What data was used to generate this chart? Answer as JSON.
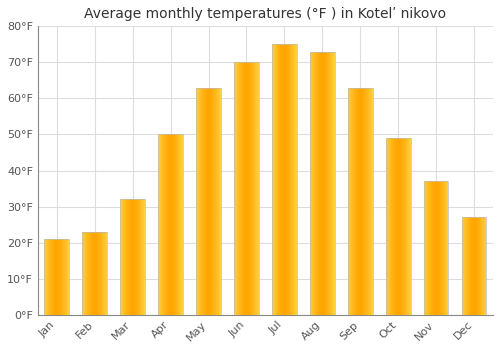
{
  "title": "Average monthly temperatures (°F ) in Kotelʹ nikovo",
  "months": [
    "Jan",
    "Feb",
    "Mar",
    "Apr",
    "May",
    "Jun",
    "Jul",
    "Aug",
    "Sep",
    "Oct",
    "Nov",
    "Dec"
  ],
  "values": [
    21,
    23,
    32,
    50,
    63,
    70,
    75,
    73,
    63,
    49,
    37,
    27
  ],
  "bar_color": "#FFA500",
  "bar_edge_color": "#cccccc",
  "ylim": [
    0,
    80
  ],
  "yticks": [
    0,
    10,
    20,
    30,
    40,
    50,
    60,
    70,
    80
  ],
  "ytick_labels": [
    "0°F",
    "10°F",
    "20°F",
    "30°F",
    "40°F",
    "50°F",
    "60°F",
    "70°F",
    "80°F"
  ],
  "background_color": "#ffffff",
  "grid_color": "#dddddd",
  "title_fontsize": 10,
  "tick_fontsize": 8,
  "title_color": "#333333",
  "tick_color": "#555555"
}
